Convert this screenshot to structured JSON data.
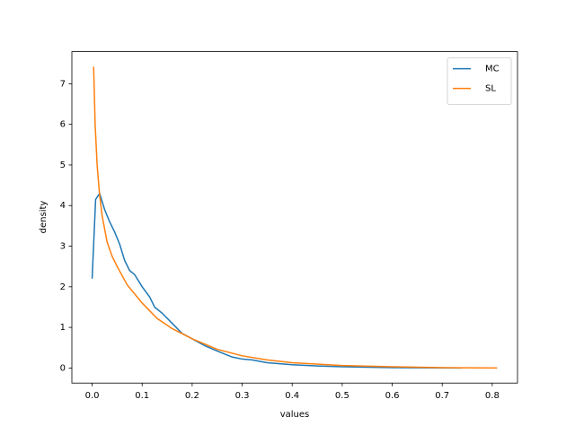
{
  "chart_data": {
    "type": "line",
    "xlabel": "values",
    "ylabel": "density",
    "xlim": [
      -0.0405,
      0.8505
    ],
    "ylim": [
      -0.371,
      7.79
    ],
    "xticks": [
      {
        "value": 0,
        "label": "0.0"
      },
      0.1,
      0.2,
      0.3,
      0.4,
      0.5,
      0.6,
      0.7,
      0.8
    ],
    "yticks": [
      0,
      1,
      2,
      3,
      4,
      5,
      6,
      7
    ],
    "legend": "upper right",
    "series": [
      {
        "name": "MC",
        "color": "#1f77b4",
        "x": [
          0,
          0.007,
          0.015,
          0.025,
          0.035,
          0.045,
          0.055,
          0.065,
          0.075,
          0.085,
          0.1,
          0.115,
          0.125,
          0.14,
          0.16,
          0.18,
          0.2,
          0.225,
          0.25,
          0.28,
          0.3,
          0.32,
          0.35,
          0.4,
          0.45,
          0.5,
          0.6,
          0.74
        ],
        "values": [
          2.2,
          4.15,
          4.3,
          3.9,
          3.6,
          3.35,
          3.05,
          2.65,
          2.4,
          2.3,
          2.0,
          1.75,
          1.5,
          1.35,
          1.1,
          0.85,
          0.72,
          0.55,
          0.42,
          0.27,
          0.22,
          0.2,
          0.13,
          0.08,
          0.05,
          0.03,
          0.01,
          0.0
        ]
      },
      {
        "name": "SL",
        "color": "#ff7f0e",
        "x": [
          0.003,
          0.006,
          0.01,
          0.015,
          0.02,
          0.03,
          0.04,
          0.05,
          0.07,
          0.1,
          0.13,
          0.16,
          0.2,
          0.25,
          0.3,
          0.35,
          0.4,
          0.5,
          0.6,
          0.7,
          0.81
        ],
        "values": [
          7.42,
          6.0,
          5.0,
          4.25,
          3.75,
          3.1,
          2.75,
          2.5,
          2.05,
          1.6,
          1.22,
          0.97,
          0.72,
          0.46,
          0.3,
          0.2,
          0.13,
          0.06,
          0.03,
          0.01,
          0.0
        ]
      }
    ]
  }
}
